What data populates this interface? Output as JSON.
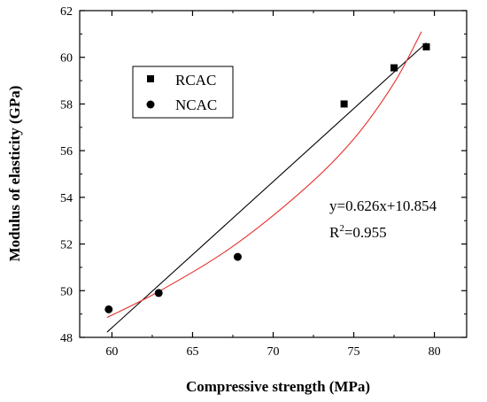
{
  "chart_data": {
    "type": "scatter",
    "title": "",
    "xlabel": "Compressive strength (MPa)",
    "ylabel": "Modulus of elasticity (GPa)",
    "xlim": [
      58,
      82
    ],
    "ylim": [
      48,
      62
    ],
    "xticks": [
      60,
      65,
      70,
      75,
      80
    ],
    "yticks": [
      48,
      50,
      52,
      54,
      56,
      58,
      60,
      62
    ],
    "grid": false,
    "legend": {
      "position": "top-left"
    },
    "series": [
      {
        "name": "RCAC",
        "marker": "square",
        "color": "#000000",
        "points": [
          [
            74.4,
            58.0
          ],
          [
            77.5,
            59.55
          ],
          [
            79.5,
            60.45
          ]
        ]
      },
      {
        "name": "NCAC",
        "marker": "circle",
        "color": "#000000",
        "points": [
          [
            59.8,
            49.2
          ],
          [
            62.9,
            49.9
          ],
          [
            67.8,
            51.45
          ]
        ]
      }
    ],
    "fits": [
      {
        "kind": "linear",
        "color": "#000000",
        "slope": 0.626,
        "intercept": 10.854,
        "x_range": [
          59.7,
          79.5
        ]
      },
      {
        "kind": "polynomial",
        "color": "#e8302a",
        "points": [
          [
            59.7,
            48.85
          ],
          [
            63,
            50.0
          ],
          [
            67.5,
            51.9
          ],
          [
            72,
            54.4
          ],
          [
            75,
            56.5
          ],
          [
            77.5,
            58.9
          ],
          [
            79.2,
            61.1
          ]
        ]
      }
    ],
    "annotations": {
      "equation": "y=0.626x+10.854",
      "r2_prefix": "R",
      "r2_sup": "2",
      "r2_value": "=0.955"
    }
  }
}
